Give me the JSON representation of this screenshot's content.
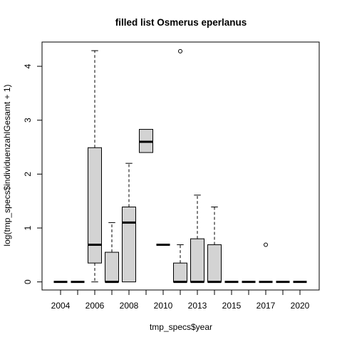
{
  "chart_data": {
    "type": "boxplot",
    "title": "filled list Osmerus eperlanus",
    "xlabel": "tmp_specs$year",
    "ylabel": "log(tmp_specs$individuenzahlGesamt + 1)",
    "ylim": [
      -0.15,
      4.45
    ],
    "yticks": [
      0,
      1,
      2,
      3,
      4
    ],
    "xtick_labels_shown": [
      "2004",
      "2006",
      "2008",
      "2010",
      "2013",
      "2015",
      "2017",
      "2020"
    ],
    "box_fill": "#d3d3d3",
    "grid": false,
    "boxes": [
      {
        "year": "2004",
        "min": 0,
        "q1": 0,
        "median": 0,
        "q3": 0,
        "max": 0,
        "outliers": []
      },
      {
        "year": "2005",
        "min": 0,
        "q1": 0,
        "median": 0,
        "q3": 0,
        "max": 0,
        "outliers": []
      },
      {
        "year": "2006",
        "min": 0,
        "q1": 0.35,
        "median": 0.69,
        "q3": 2.49,
        "max": 4.29,
        "outliers": []
      },
      {
        "year": "2007",
        "min": 0,
        "q1": 0,
        "median": 0,
        "q3": 0.55,
        "max": 1.1,
        "outliers": []
      },
      {
        "year": "2008",
        "min": 0,
        "q1": 0,
        "median": 1.1,
        "q3": 1.39,
        "max": 2.2,
        "outliers": []
      },
      {
        "year": "2009",
        "min": 2.4,
        "q1": 2.4,
        "median": 2.6,
        "q3": 2.83,
        "max": 2.83,
        "outliers": []
      },
      {
        "year": "2010",
        "min": 0.69,
        "q1": 0.69,
        "median": 0.69,
        "q3": 0.69,
        "max": 0.69,
        "outliers": []
      },
      {
        "year": "2012",
        "min": 0,
        "q1": 0,
        "median": 0,
        "q3": 0.35,
        "max": 0.69,
        "outliers": [
          4.28
        ]
      },
      {
        "year": "2013",
        "min": 0,
        "q1": 0,
        "median": 0,
        "q3": 0.8,
        "max": 1.61,
        "outliers": []
      },
      {
        "year": "2014",
        "min": 0,
        "q1": 0,
        "median": 0,
        "q3": 0.69,
        "max": 1.39,
        "outliers": []
      },
      {
        "year": "2015",
        "min": 0,
        "q1": 0,
        "median": 0,
        "q3": 0,
        "max": 0,
        "outliers": []
      },
      {
        "year": "2016",
        "min": 0,
        "q1": 0,
        "median": 0,
        "q3": 0,
        "max": 0,
        "outliers": []
      },
      {
        "year": "2017",
        "min": 0,
        "q1": 0,
        "median": 0,
        "q3": 0,
        "max": 0,
        "outliers": [
          0.69
        ]
      },
      {
        "year": "2018",
        "min": 0,
        "q1": 0,
        "median": 0,
        "q3": 0,
        "max": 0,
        "outliers": []
      },
      {
        "year": "2020",
        "min": 0,
        "q1": 0,
        "median": 0,
        "q3": 0,
        "max": 0,
        "outliers": []
      }
    ]
  }
}
